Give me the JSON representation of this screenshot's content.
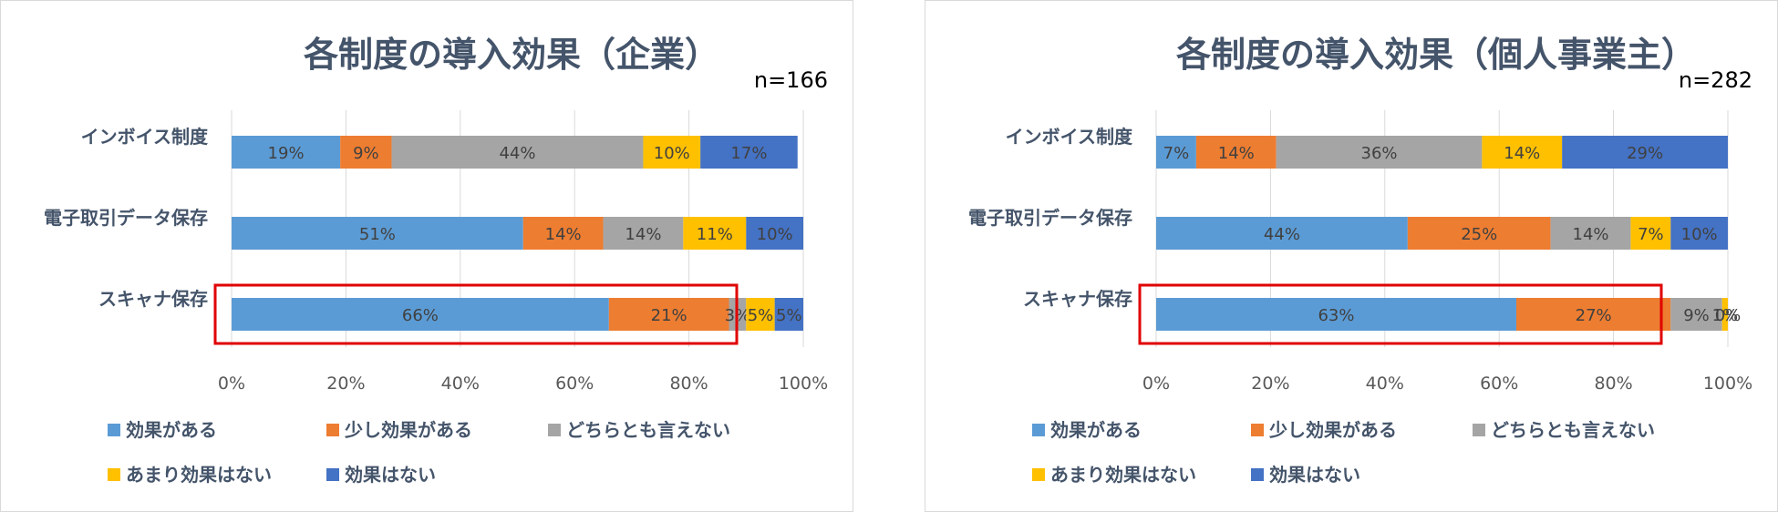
{
  "colors": {
    "effective": "#5B9BD5",
    "somewhat": "#ED7D31",
    "neutral": "#A5A5A5",
    "not_much": "#FFC000",
    "none": "#4472C4",
    "title": "#44546A",
    "highlight": "#E00000"
  },
  "chart_data": [
    {
      "type": "bar",
      "orientation": "horizontal-stacked-percent",
      "title": "各制度の導入効果（企業）",
      "sample": "n=166",
      "categories": [
        "インボイス制度",
        "電子取引データ保存",
        "スキャナ保存"
      ],
      "x_ticks": [
        "0%",
        "20%",
        "40%",
        "60%",
        "80%",
        "100%"
      ],
      "xlim": [
        0,
        100
      ],
      "grid": true,
      "legend_position": "bottom",
      "highlight_category": "スキャナ保存",
      "series": [
        {
          "name": "効果がある",
          "color": "#5B9BD5",
          "values": [
            19,
            51,
            66
          ],
          "labels": [
            "19%",
            "51%",
            "66%"
          ]
        },
        {
          "name": "少し効果がある",
          "color": "#ED7D31",
          "values": [
            9,
            14,
            21
          ],
          "labels": [
            "9%",
            "14%",
            "21%"
          ]
        },
        {
          "name": "どちらとも言えない",
          "color": "#A5A5A5",
          "values": [
            44,
            14,
            3
          ],
          "labels": [
            "44%",
            "14%",
            "3%"
          ]
        },
        {
          "name": "あまり効果はない",
          "color": "#FFC000",
          "values": [
            10,
            11,
            5
          ],
          "labels": [
            "10%",
            "11%",
            "5%"
          ]
        },
        {
          "name": "効果はない",
          "color": "#4472C4",
          "values": [
            17,
            10,
            5
          ],
          "labels": [
            "17%",
            "10%",
            "5%"
          ]
        }
      ]
    },
    {
      "type": "bar",
      "orientation": "horizontal-stacked-percent",
      "title": "各制度の導入効果（個人事業主）",
      "sample": "n=282",
      "categories": [
        "インボイス制度",
        "電子取引データ保存",
        "スキャナ保存"
      ],
      "x_ticks": [
        "0%",
        "20%",
        "40%",
        "60%",
        "80%",
        "100%"
      ],
      "xlim": [
        0,
        100
      ],
      "grid": true,
      "legend_position": "bottom",
      "highlight_category": "スキャナ保存",
      "series": [
        {
          "name": "効果がある",
          "color": "#5B9BD5",
          "values": [
            7,
            44,
            63
          ],
          "labels": [
            "7%",
            "44%",
            "63%"
          ]
        },
        {
          "name": "少し効果がある",
          "color": "#ED7D31",
          "values": [
            14,
            25,
            27
          ],
          "labels": [
            "14%",
            "25%",
            "27%"
          ]
        },
        {
          "name": "どちらとも言えない",
          "color": "#A5A5A5",
          "values": [
            36,
            14,
            9
          ],
          "labels": [
            "36%",
            "14%",
            "9%"
          ]
        },
        {
          "name": "あまり効果はない",
          "color": "#FFC000",
          "values": [
            14,
            7,
            1
          ],
          "labels": [
            "14%",
            "7%",
            "1%"
          ]
        },
        {
          "name": "効果はない",
          "color": "#4472C4",
          "values": [
            29,
            10,
            0
          ],
          "labels": [
            "29%",
            "10%",
            "0%"
          ]
        }
      ]
    }
  ]
}
